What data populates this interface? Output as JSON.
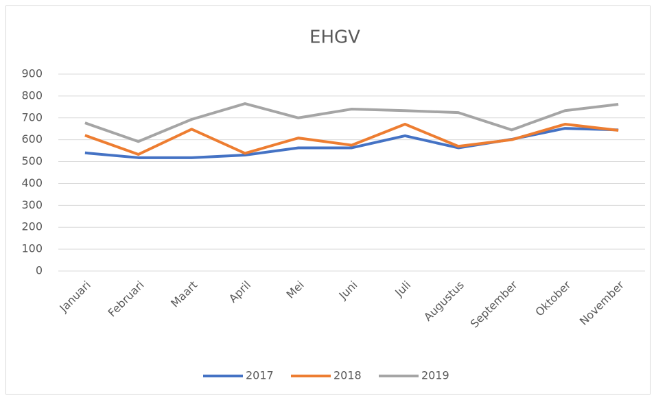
{
  "chart_data": {
    "type": "line",
    "title": "EHGV",
    "categories": [
      "Januari",
      "Februari",
      "Maart",
      "April",
      "Mei",
      "Juni",
      "Juli",
      "Augustus",
      "September",
      "Oktober",
      "November"
    ],
    "series": [
      {
        "name": "2017",
        "color": "#4472c4",
        "values": [
          540,
          518,
          518,
          530,
          563,
          563,
          618,
          563,
          602,
          652,
          645
        ]
      },
      {
        "name": "2018",
        "color": "#ed7d31",
        "values": [
          620,
          533,
          648,
          538,
          608,
          575,
          671,
          570,
          600,
          671,
          643
        ]
      },
      {
        "name": "2019",
        "color": "#a5a5a5",
        "values": [
          677,
          592,
          693,
          765,
          700,
          740,
          733,
          724,
          645,
          733,
          762
        ]
      }
    ],
    "ylim": [
      0,
      900
    ],
    "yticks": [
      0,
      100,
      200,
      300,
      400,
      500,
      600,
      700,
      800,
      900
    ],
    "grid": true,
    "legend": "bottom"
  }
}
